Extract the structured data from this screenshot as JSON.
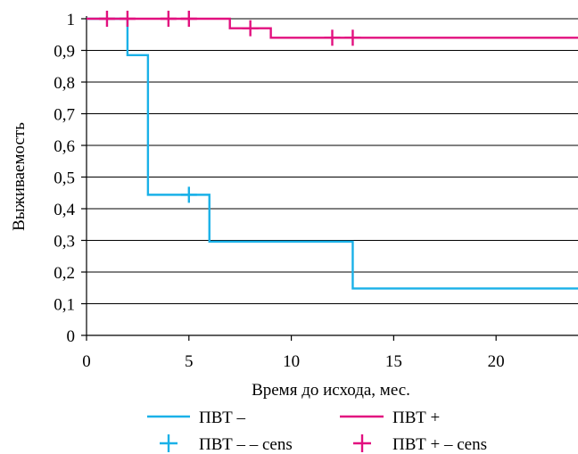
{
  "chart_data": {
    "type": "line",
    "title": "",
    "xlabel": "Время до исхода, мес.",
    "ylabel": "Выживаемость",
    "xlim": [
      0,
      24
    ],
    "ylim": [
      0,
      1
    ],
    "x_ticks": [
      0,
      5,
      10,
      15,
      20
    ],
    "x_tick_labels": [
      "0",
      "5",
      "10",
      "15",
      "20"
    ],
    "y_ticks": [
      0,
      0.1,
      0.2,
      0.3,
      0.4,
      0.5,
      0.6,
      0.7,
      0.8,
      0.9,
      1
    ],
    "y_tick_labels": [
      "0",
      "0,1",
      "0,2",
      "0,3",
      "0,4",
      "0,5",
      "0,6",
      "0,7",
      "0,8",
      "0,9",
      "1"
    ],
    "grid": "horizontal",
    "legend_position": "bottom",
    "series": [
      {
        "name": "ПВТ –",
        "color": "#1AB1E8",
        "step_points": [
          [
            0,
            1
          ],
          [
            2,
            0.885
          ],
          [
            3,
            0.444
          ],
          [
            6,
            0.296
          ],
          [
            13,
            0.148
          ],
          [
            24,
            0.148
          ]
        ]
      },
      {
        "name": "ПВТ +",
        "color": "#E2107F",
        "step_points": [
          [
            0,
            1
          ],
          [
            7,
            0.97
          ],
          [
            9,
            0.94
          ],
          [
            24,
            0.94
          ]
        ]
      }
    ],
    "censored": [
      {
        "name": "ПВТ – – cens",
        "color": "#1AB1E8",
        "points": [
          [
            5,
            0.444
          ]
        ]
      },
      {
        "name": "ПВТ + – cens",
        "color": "#E2107F",
        "points": [
          [
            1,
            1
          ],
          [
            2,
            1
          ],
          [
            4,
            1
          ],
          [
            5,
            1
          ],
          [
            8,
            0.97
          ],
          [
            12,
            0.94
          ],
          [
            13,
            0.94
          ]
        ]
      }
    ]
  }
}
